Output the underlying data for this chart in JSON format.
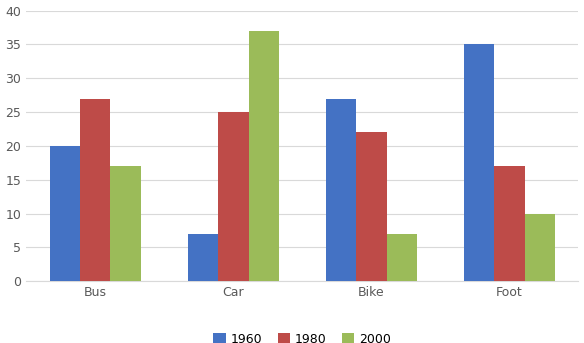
{
  "categories": [
    "Bus",
    "Car",
    "Bike",
    "Foot"
  ],
  "series": {
    "1960": [
      20,
      7,
      27,
      35
    ],
    "1980": [
      27,
      25,
      22,
      17
    ],
    "2000": [
      17,
      37,
      7,
      10
    ]
  },
  "colors": {
    "1960": "#4472C4",
    "1980": "#BE4B48",
    "2000": "#9BBB59"
  },
  "ylim": [
    0,
    40
  ],
  "yticks": [
    0,
    5,
    10,
    15,
    20,
    25,
    30,
    35,
    40
  ],
  "legend_labels": [
    "1960",
    "1980",
    "2000"
  ],
  "bar_width": 0.22,
  "grid_color": "#D9D9D9",
  "bg_color": "#FFFFFF",
  "plot_area_bg": "#FFFFFF"
}
